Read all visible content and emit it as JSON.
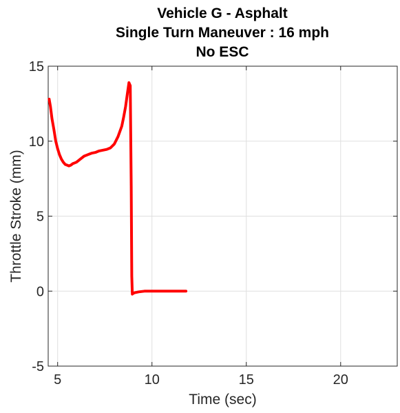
{
  "chart_data": {
    "type": "line",
    "title_lines": [
      "Vehicle G - Asphalt",
      "Single Turn Maneuver : 16 mph",
      "No ESC"
    ],
    "xlabel": "Time (sec)",
    "ylabel": "Throttle Stroke (mm)",
    "xlim": [
      4.5,
      23
    ],
    "ylim": [
      -5,
      15
    ],
    "xticks": [
      5,
      10,
      15,
      20
    ],
    "yticks": [
      -5,
      0,
      5,
      10,
      15
    ],
    "grid": true,
    "series": [
      {
        "color": "#ff0000",
        "x": [
          4.55,
          4.62,
          4.7,
          4.8,
          4.9,
          5.0,
          5.1,
          5.2,
          5.3,
          5.4,
          5.5,
          5.6,
          5.7,
          5.8,
          5.9,
          6.0,
          6.2,
          6.4,
          6.6,
          6.8,
          7.0,
          7.2,
          7.4,
          7.6,
          7.8,
          8.0,
          8.2,
          8.4,
          8.5,
          8.6,
          8.7,
          8.78,
          8.85,
          8.9,
          8.93,
          8.96,
          9.0,
          9.1,
          9.3,
          9.6,
          10.0,
          10.5,
          11.0,
          11.5,
          11.8
        ],
        "y": [
          12.8,
          12.3,
          11.5,
          10.8,
          10.0,
          9.5,
          9.1,
          8.8,
          8.6,
          8.45,
          8.4,
          8.35,
          8.4,
          8.5,
          8.55,
          8.6,
          8.8,
          9.0,
          9.1,
          9.2,
          9.25,
          9.35,
          9.4,
          9.45,
          9.55,
          9.8,
          10.3,
          11.0,
          11.6,
          12.3,
          13.2,
          13.9,
          13.7,
          7.0,
          1.0,
          -0.2,
          -0.15,
          -0.1,
          -0.05,
          0.0,
          0.0,
          0.0,
          0.0,
          0.0,
          0.0
        ]
      }
    ]
  }
}
